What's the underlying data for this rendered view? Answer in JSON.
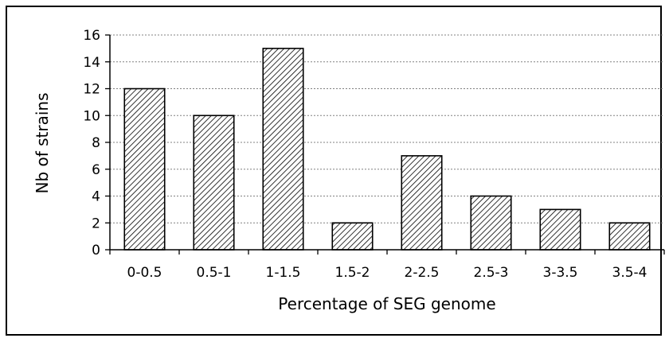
{
  "chart_data": {
    "type": "bar",
    "categories": [
      "0-0.5",
      "0.5-1",
      "1-1.5",
      "1.5-2",
      "2-2.5",
      "2.5-3",
      "3-3.5",
      "3.5-4"
    ],
    "values": [
      12,
      10,
      15,
      2,
      7,
      4,
      3,
      2
    ],
    "title": "",
    "xlabel": "Percentage of SEG genome",
    "ylabel": "Nb of strains",
    "ylim": [
      0,
      16
    ],
    "yticks": [
      0,
      2,
      4,
      6,
      8,
      10,
      12,
      14,
      16
    ],
    "grid": true,
    "legend": "none",
    "bar_fill": "diagonal-hatch",
    "colors": {
      "hatch": "#000000",
      "bar_background": "#ffffff",
      "gridline": "#808080",
      "axis": "#000000"
    }
  }
}
